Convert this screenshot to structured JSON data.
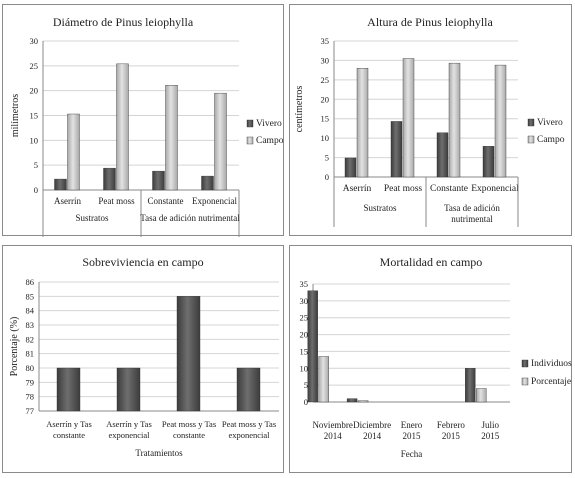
{
  "chart_data": [
    {
      "type": "bar",
      "title": "Diámetro de Pinus leiophylla",
      "ylabel": "milímetros",
      "xlabel": "",
      "ylim": [
        0,
        30
      ],
      "yticks": [
        "0",
        "5",
        "10",
        "15",
        "20",
        "25",
        "30"
      ],
      "categories": [
        "Aserrín",
        "Peat moss",
        "Constante",
        "Exponencial"
      ],
      "groups": [
        {
          "label": "Sustratos",
          "span": [
            0,
            1
          ]
        },
        {
          "label": "Tasa de adición  nutrimental",
          "span": [
            2,
            3
          ]
        }
      ],
      "series": [
        {
          "name": "Vivero",
          "values": [
            2.2,
            4.4,
            3.8,
            2.8
          ]
        },
        {
          "name": "Campo",
          "values": [
            15.3,
            25.4,
            21.1,
            19.5
          ]
        }
      ],
      "legend": "right",
      "grid": true
    },
    {
      "type": "bar",
      "title": "Altura de Pinus leiophylla",
      "ylabel": "centímetros",
      "xlabel": "",
      "ylim": [
        0,
        35
      ],
      "yticks": [
        "0",
        "5",
        "10",
        "15",
        "20",
        "25",
        "30",
        "35"
      ],
      "categories": [
        "Aserrín",
        "Peat moss",
        "Constante",
        "Exponencial"
      ],
      "groups": [
        {
          "label": "Sustratos",
          "span": [
            0,
            1
          ]
        },
        {
          "label": "Tasa de adición nutrimental",
          "span": [
            2,
            3
          ]
        }
      ],
      "series": [
        {
          "name": "Vivero",
          "values": [
            4.9,
            14.3,
            11.4,
            7.9
          ]
        },
        {
          "name": "Campo",
          "values": [
            28.0,
            30.5,
            29.3,
            28.8
          ]
        }
      ],
      "legend": "right",
      "grid": true
    },
    {
      "type": "bar",
      "title": "Sobreviviencia en campo",
      "ylabel": "Porcentaje (%)",
      "xlabel": "Tratamientos",
      "ylim": [
        77,
        86
      ],
      "yticks": [
        "77",
        "78",
        "79",
        "80",
        "81",
        "82",
        "83",
        "84",
        "85",
        "86"
      ],
      "categories": [
        "Aserrín y Tasa constante",
        "Aserrín y Tasa exponencial",
        "Peat moss y Tasa constante",
        "Peat moss y Tasa exponencial"
      ],
      "series": [
        {
          "name": "",
          "values": [
            80,
            80,
            85,
            80
          ]
        }
      ],
      "grid": true
    },
    {
      "type": "bar",
      "title": "Mortalidad en campo",
      "ylabel": "",
      "xlabel": "Fecha",
      "ylim": [
        0,
        35
      ],
      "yticks": [
        "0",
        "5",
        "10",
        "15",
        "20",
        "25",
        "30",
        "35"
      ],
      "categories": [
        "Noviembre 2014",
        "Diciembre 2014",
        "Enero 2015",
        "Febrero 2015",
        "Julio 2015"
      ],
      "series": [
        {
          "name": "Individuos",
          "values": [
            33,
            1,
            0,
            0,
            10
          ]
        },
        {
          "name": "Porcentaje",
          "values": [
            13.5,
            0.4,
            0,
            0,
            4
          ]
        }
      ],
      "legend": "right",
      "grid": true
    }
  ],
  "colors": {
    "dark_bar": "#4d4d4d",
    "light_bar": "#c4c4c4",
    "grid": "#d4d4d4",
    "axis": "#8a8a8a"
  }
}
